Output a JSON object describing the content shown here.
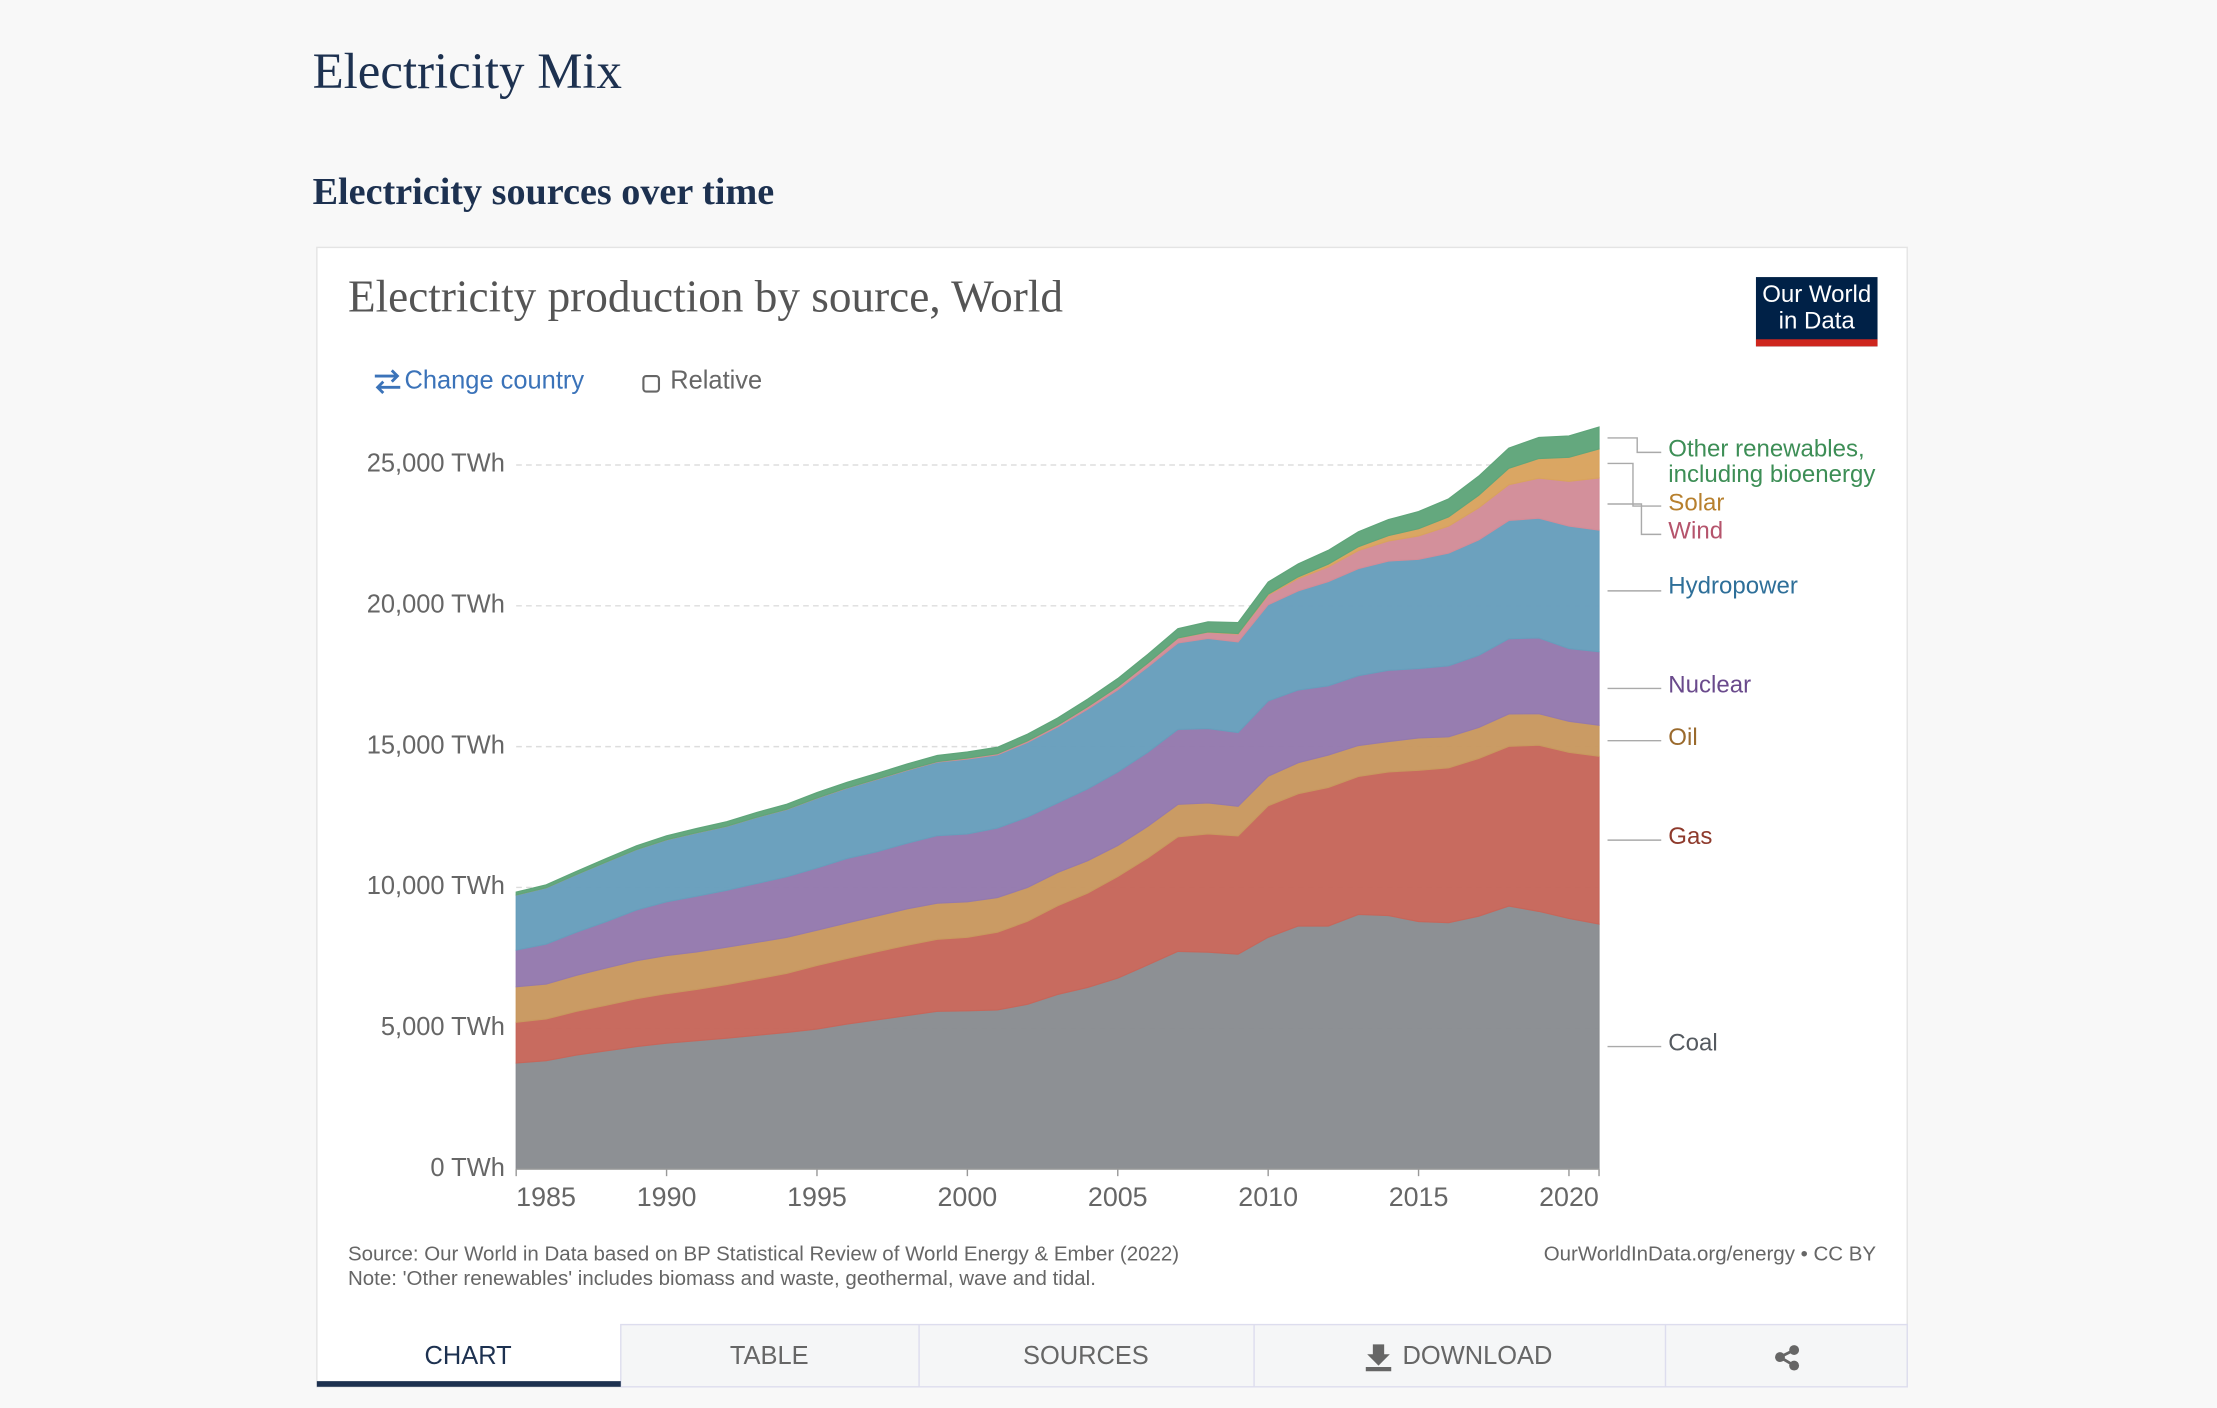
{
  "page": {
    "heading": "Electricity Mix",
    "subheading": "Electricity sources over time",
    "controls": {
      "change": "Change country",
      "relative": "Relative"
    },
    "logo": [
      "Our World",
      "in Data"
    ],
    "tabs": [
      "CHART",
      "TABLE",
      "SOURCES",
      "DOWNLOAD"
    ]
  },
  "chart_data": {
    "type": "area",
    "stacked": true,
    "title": "Electricity production by source, World",
    "source": "Source: Our World in Data based on BP Statistical Review of World Energy & Ember (2022)",
    "note": "Note: 'Other renewables' includes biomass and waste, geothermal, wave and tidal.",
    "credit": "OurWorldInData.org/energy • CC BY",
    "x": [
      1985,
      1986,
      1987,
      1988,
      1989,
      1990,
      1991,
      1992,
      1993,
      1994,
      1995,
      1996,
      1997,
      1998,
      1999,
      2000,
      2001,
      2002,
      2003,
      2004,
      2005,
      2006,
      2007,
      2008,
      2009,
      2010,
      2011,
      2012,
      2013,
      2014,
      2015,
      2016,
      2017,
      2018,
      2019,
      2020,
      2021
    ],
    "xlim": [
      1985,
      2021
    ],
    "xticks": [
      1985,
      1990,
      1995,
      2000,
      2005,
      2010,
      2015,
      2020
    ],
    "ylim": [
      0,
      26000
    ],
    "yticks": [
      {
        "value": 0,
        "label": "0 TWh"
      },
      {
        "value": 5000,
        "label": "5,000 TWh"
      },
      {
        "value": 10000,
        "label": "10,000 TWh"
      },
      {
        "value": 15000,
        "label": "15,000 TWh"
      },
      {
        "value": 20000,
        "label": "20,000 TWh"
      },
      {
        "value": 25000,
        "label": "25,000 TWh"
      }
    ],
    "grid": true,
    "legend": "right",
    "series": [
      {
        "name": "Coal",
        "color": "#898c91",
        "label_color": "#555a60",
        "values": [
          3765,
          3850,
          4050,
          4200,
          4350,
          4470,
          4560,
          4650,
          4750,
          4850,
          4970,
          5150,
          5300,
          5450,
          5600,
          5620,
          5650,
          5850,
          6200,
          6450,
          6780,
          7250,
          7730,
          7700,
          7630,
          8230,
          8630,
          8630,
          9040,
          9000,
          8790,
          8750,
          8980,
          9340,
          9150,
          8900,
          8700
        ]
      },
      {
        "name": "Gas",
        "color": "#c6665a",
        "label_color": "#8e3a2c",
        "values": [
          1450,
          1480,
          1550,
          1620,
          1700,
          1760,
          1820,
          1900,
          2000,
          2100,
          2260,
          2330,
          2420,
          2500,
          2560,
          2610,
          2760,
          2950,
          3150,
          3350,
          3610,
          3800,
          4070,
          4200,
          4200,
          4670,
          4700,
          4920,
          4900,
          5100,
          5370,
          5500,
          5600,
          5670,
          5900,
          5900,
          5960
        ]
      },
      {
        "name": "Oil",
        "color": "#c8985f",
        "label_color": "#9a6a2d",
        "values": [
          1260,
          1240,
          1280,
          1320,
          1350,
          1350,
          1330,
          1330,
          1300,
          1280,
          1250,
          1260,
          1270,
          1290,
          1280,
          1260,
          1230,
          1200,
          1180,
          1150,
          1100,
          1120,
          1150,
          1100,
          1050,
          1050,
          1100,
          1150,
          1100,
          1080,
          1150,
          1100,
          1100,
          1150,
          1120,
          1100,
          1100
        ]
      },
      {
        "name": "Nuclear",
        "color": "#9479ad",
        "label_color": "#6a4a8c",
        "values": [
          1300,
          1420,
          1530,
          1650,
          1800,
          1910,
          1980,
          2020,
          2090,
          2150,
          2210,
          2290,
          2280,
          2330,
          2400,
          2410,
          2470,
          2500,
          2470,
          2550,
          2610,
          2630,
          2660,
          2640,
          2620,
          2670,
          2580,
          2460,
          2480,
          2530,
          2460,
          2520,
          2560,
          2670,
          2690,
          2580,
          2610
        ]
      },
      {
        "name": "Hydropower",
        "color": "#679ebc",
        "label_color": "#2e6f99",
        "values": [
          1960,
          2000,
          2050,
          2120,
          2150,
          2200,
          2250,
          2270,
          2350,
          2390,
          2480,
          2500,
          2570,
          2590,
          2610,
          2660,
          2600,
          2650,
          2700,
          2830,
          2920,
          3030,
          3070,
          3200,
          3220,
          3420,
          3520,
          3700,
          3800,
          3880,
          3880,
          4000,
          4100,
          4200,
          4250,
          4350,
          4320
        ]
      },
      {
        "name": "Wind",
        "color": "#d28c98",
        "label_color": "#b5546c",
        "values": [
          0,
          0,
          0,
          0,
          0,
          4,
          4,
          5,
          6,
          7,
          8,
          9,
          12,
          16,
          21,
          31,
          38,
          52,
          63,
          85,
          104,
          133,
          170,
          221,
          276,
          342,
          437,
          521,
          645,
          712,
          831,
          958,
          1140,
          1270,
          1420,
          1590,
          1850
        ]
      },
      {
        "name": "Solar",
        "color": "#d9a35e",
        "label_color": "#b7802e",
        "values": [
          0,
          0,
          0,
          0,
          0,
          0,
          0,
          0,
          0,
          0,
          0,
          0,
          0,
          0,
          0,
          1,
          1,
          2,
          2,
          3,
          4,
          6,
          8,
          12,
          20,
          32,
          63,
          99,
          134,
          190,
          256,
          329,
          445,
          580,
          700,
          850,
          1030
        ]
      },
      {
        "name": "Other renewables, including bioenergy",
        "color": "#5fa57a",
        "label_color": "#3d8e56",
        "values": [
          100,
          105,
          110,
          120,
          130,
          140,
          150,
          160,
          170,
          180,
          190,
          195,
          200,
          210,
          215,
          220,
          230,
          240,
          250,
          270,
          290,
          310,
          330,
          360,
          390,
          430,
          460,
          490,
          530,
          570,
          610,
          640,
          680,
          720,
          750,
          760,
          780
        ]
      }
    ]
  }
}
